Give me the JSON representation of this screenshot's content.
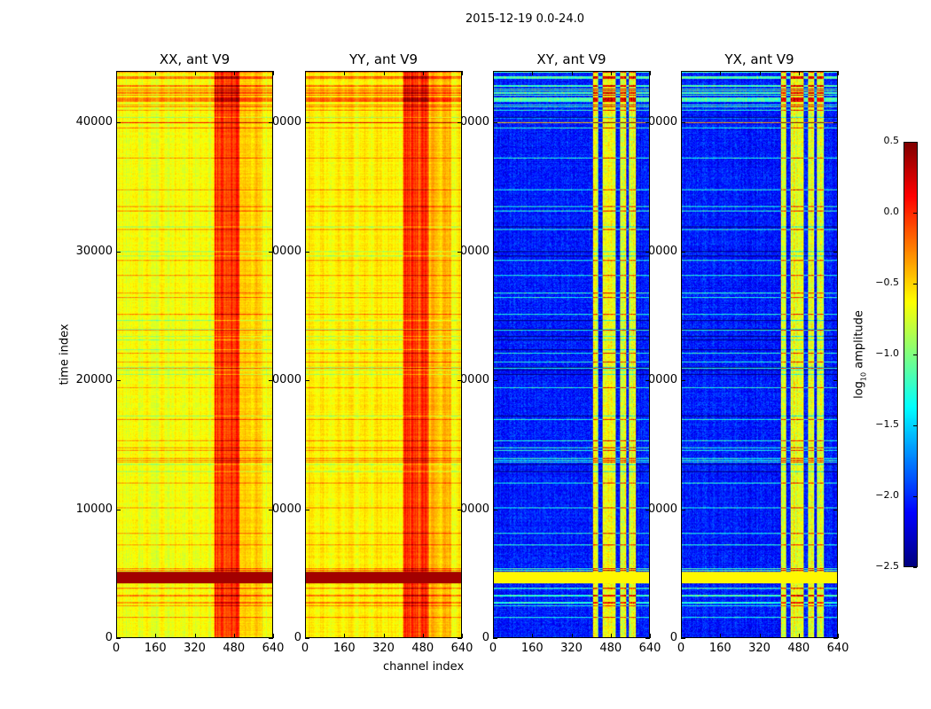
{
  "chart_data": {
    "type": "heatmap",
    "suptitle": "2015-12-19 0.0-24.0",
    "colormap": "jet",
    "clim": [
      -2.5,
      0.5
    ],
    "colorbar": {
      "label": "log10 amplitude",
      "label_main": "log",
      "label_sub": "10",
      "label_rest": " amplitude",
      "ticks": [
        "0.5",
        "0.0",
        "−0.5",
        "−1.0",
        "−1.5",
        "−2.0",
        "−2.5"
      ],
      "tick_values": [
        0.5,
        0.0,
        -0.5,
        -1.0,
        -1.5,
        -2.0,
        -2.5
      ]
    },
    "xlabel": "channel index",
    "ylabel": "time index",
    "xlim": [
      0,
      640
    ],
    "ylim": [
      0,
      44000
    ],
    "xticks": [
      "0",
      "160",
      "320",
      "480",
      "640"
    ],
    "xtick_values": [
      0,
      160,
      320,
      480,
      640
    ],
    "yticks": [
      "0",
      "10000",
      "20000",
      "30000",
      "40000"
    ],
    "ytick_values": [
      0,
      10000,
      20000,
      30000,
      40000
    ],
    "panels": [
      {
        "title": "XX, ant V9",
        "pol": "XX",
        "base_level": -0.65,
        "band_level": -0.05
      },
      {
        "title": "YY, ant V9",
        "pol": "YY",
        "base_level": -0.6,
        "band_level": -0.05
      },
      {
        "title": "XY, ant V9",
        "pol": "XY",
        "base_level": -2.05,
        "band_level": -0.7
      },
      {
        "title": "YX, ant V9",
        "pol": "YX",
        "base_level": -2.05,
        "band_level": -0.7
      }
    ]
  }
}
